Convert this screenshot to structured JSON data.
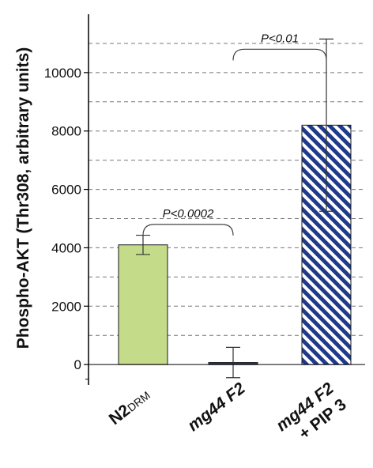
{
  "chart_data": {
    "type": "bar",
    "ylabel": "Phospho-AKT (Thr308, arbitrary units)",
    "ylim": [
      -700,
      12000
    ],
    "yticks": [
      0,
      2000,
      4000,
      6000,
      8000,
      10000
    ],
    "grid": "horizontal dashed",
    "categories": [
      {
        "main": "N2",
        "sub": "DRM",
        "line2": ""
      },
      {
        "main": "mg44 F2",
        "sub": "",
        "line2": ""
      },
      {
        "main": "mg44 F2",
        "sub": "",
        "line2": "+ PIP 3"
      }
    ],
    "values": [
      4100,
      70,
      8200
    ],
    "errors": [
      330,
      520,
      2950
    ],
    "colors": [
      "#c4dc8a",
      "#1f3a8a",
      "#1f3a8a"
    ],
    "patterns": [
      "solid",
      "solid",
      "diagonal-hatch"
    ],
    "annotations": [
      {
        "text": "P<0.0002",
        "from": 0,
        "to": 1,
        "y": 4800
      },
      {
        "text": "P<0.01",
        "from": 1,
        "to": 2,
        "y": 10800
      }
    ]
  }
}
